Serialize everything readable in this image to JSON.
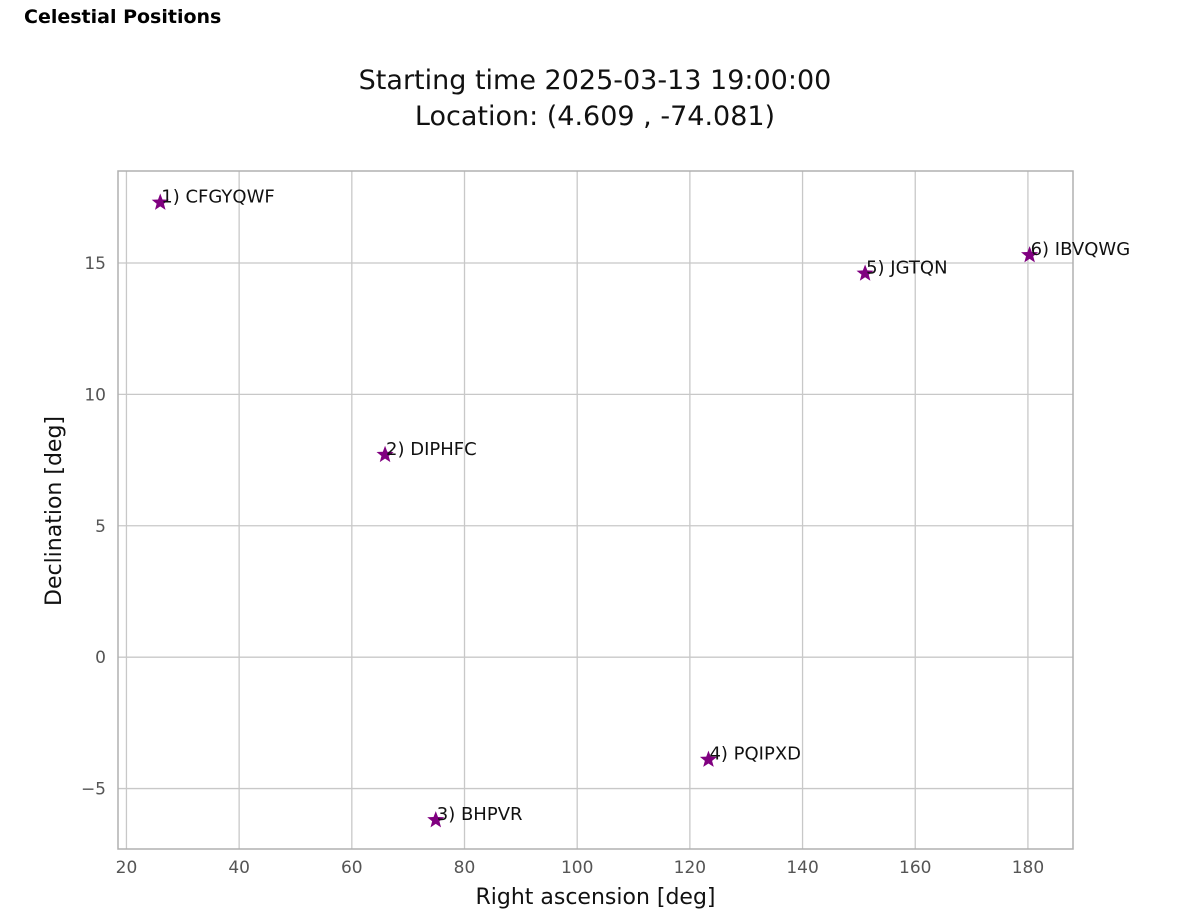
{
  "header": {
    "title": "Celestial Positions"
  },
  "chart_data": {
    "type": "scatter",
    "title_lines": [
      "Starting time 2025-03-13 19:00:00",
      "Location: (4.609 , -74.081)"
    ],
    "xlabel": "Right ascension [deg]",
    "ylabel": "Declination [deg]",
    "xlim": [
      18.5,
      188
    ],
    "ylim": [
      -7.3,
      18.5
    ],
    "xticks": [
      20,
      40,
      60,
      80,
      100,
      120,
      140,
      160,
      180
    ],
    "yticks": [
      -5,
      0,
      5,
      10,
      15
    ],
    "xtick_labels": [
      "20",
      "40",
      "60",
      "80",
      "100",
      "120",
      "140",
      "160",
      "180"
    ],
    "ytick_labels": [
      "−5",
      "0",
      "5",
      "10",
      "15"
    ],
    "grid": true,
    "marker": "star",
    "marker_color": "#800080",
    "points": [
      {
        "label": "1) CFGYQWF",
        "x": 26.0,
        "y": 17.3
      },
      {
        "label": "2) DIPHFC",
        "x": 65.9,
        "y": 7.7
      },
      {
        "label": "3) BHPVR",
        "x": 74.9,
        "y": -6.2
      },
      {
        "label": "4) PQIPXD",
        "x": 123.3,
        "y": -3.9
      },
      {
        "label": "5) JGTQN",
        "x": 151.1,
        "y": 14.6
      },
      {
        "label": "6) IBVQWG",
        "x": 180.3,
        "y": 15.3
      }
    ]
  }
}
